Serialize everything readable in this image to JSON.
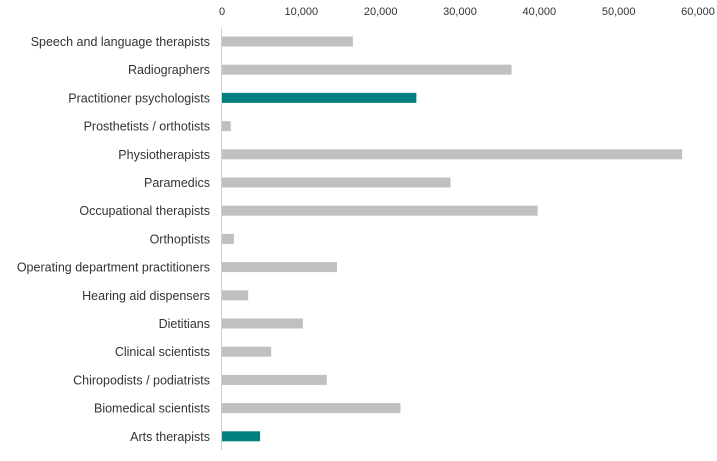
{
  "chart_data": {
    "type": "bar",
    "orientation": "horizontal",
    "title": "",
    "xlabel": "",
    "ylabel": "",
    "xlim": [
      0,
      60000
    ],
    "x_ticks": [
      "0",
      "10,000",
      "20,000",
      "30,000",
      "40,000",
      "50,000",
      "60,000"
    ],
    "x_tick_values": [
      0,
      10000,
      20000,
      30000,
      40000,
      50000,
      60000
    ],
    "grid": false,
    "legend": "none",
    "categories": [
      "Speech and language therapists",
      "Radiographers",
      "Practitioner psychologists",
      "Prosthetists / orthotists",
      "Physiotherapists",
      "Paramedics",
      "Occupational therapists",
      "Orthoptists",
      "Operating department practitioners",
      "Hearing aid dispensers",
      "Dietitians",
      "Clinical scientists",
      "Chiropodists / podiatrists",
      "Biomedical scientists",
      "Arts therapists"
    ],
    "values": [
      16500,
      36500,
      24500,
      1100,
      58000,
      28800,
      39800,
      1500,
      14500,
      3300,
      10200,
      6200,
      13200,
      22500,
      4800
    ],
    "highlighted": [
      false,
      false,
      true,
      false,
      false,
      false,
      false,
      false,
      false,
      false,
      false,
      false,
      false,
      false,
      true
    ],
    "colors": {
      "default": "#c0c0c0",
      "highlight": "#008080",
      "axis": "#d0d0d0"
    }
  }
}
